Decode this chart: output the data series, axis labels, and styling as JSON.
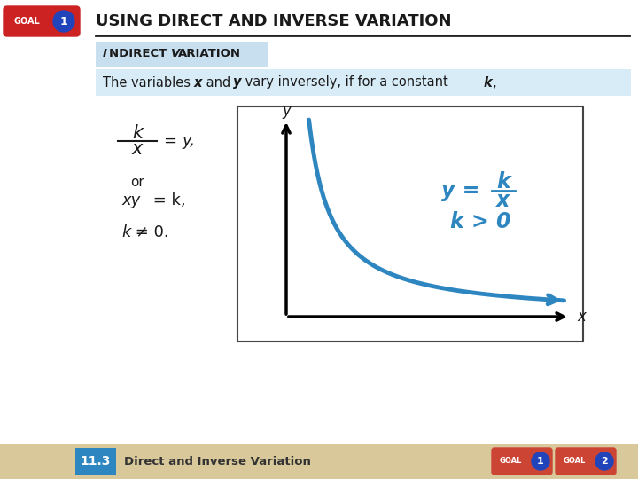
{
  "bg_color": "#ffffff",
  "title_text": "USING DIRECT AND INVERSE VARIATION",
  "title_color": "#1a1a1a",
  "goal_badge_red": "#cc2222",
  "goal_badge_blue": "#2244bb",
  "indirect_label_bg": "#c8dff0",
  "indirect_label_text": "Indirect Variation",
  "body_bg": "#d8ecf8",
  "curve_color": "#2e86c1",
  "axis_color": "#111111",
  "annotation_color": "#2e86c1",
  "footer_bg": "#d9c99a",
  "footer_box_bg": "#2e86c1",
  "footer_number": "11.3",
  "footer_text": "Direct and Inverse Variation",
  "footer_goal_red": "#cc4433",
  "footer_goal_blue": "#2244bb"
}
